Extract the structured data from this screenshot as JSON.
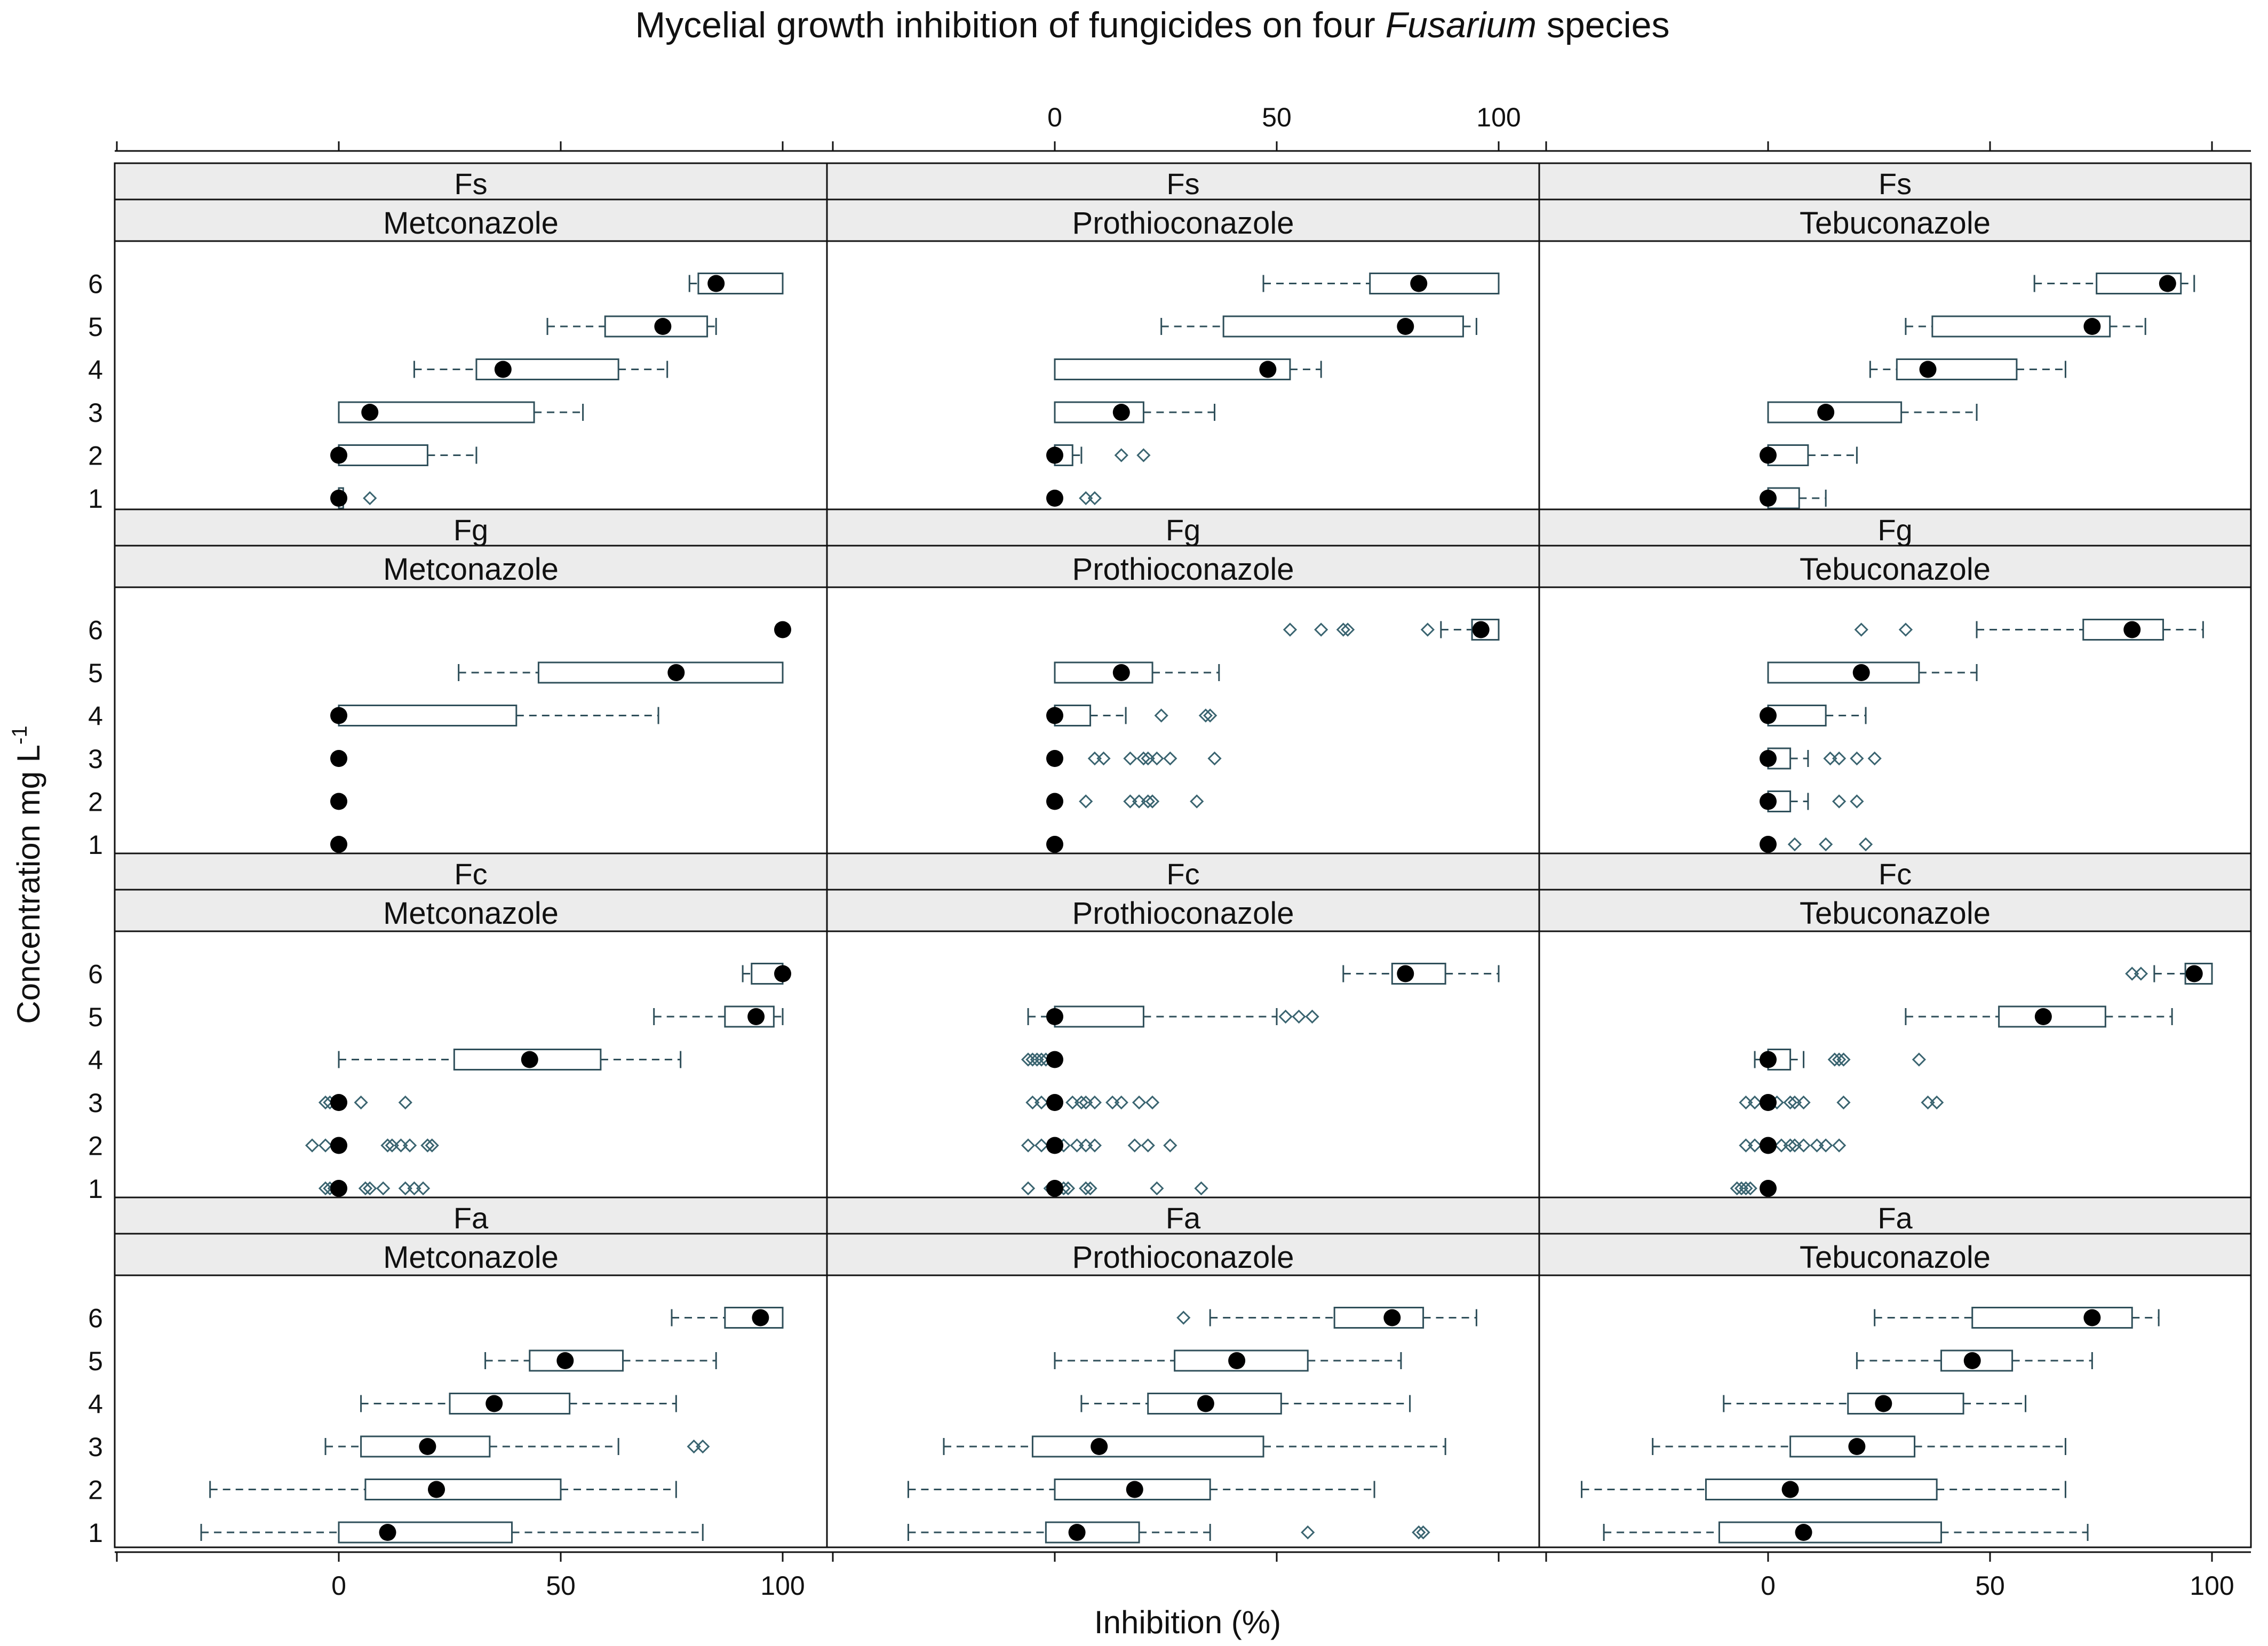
{
  "chart_data": {
    "type": "boxplot",
    "title_prefix": "Mycelial growth inhibition of fungicides on four ",
    "title_italic": "Fusarium",
    "title_suffix": " species",
    "xlabel": "Inhibition (%)",
    "ylabel": "Concentration mg L",
    "ylabel_sup": "-1",
    "xlim": [
      -50,
      110
    ],
    "x_ticks": [
      0,
      50,
      100
    ],
    "y_categories": [
      "1",
      "2",
      "3",
      "4",
      "5",
      "6"
    ],
    "panels": [
      {
        "species": "Fs",
        "fungicide": "Metconazole",
        "boxes": [
          {
            "min": 0,
            "q1": 0,
            "median": 0,
            "q3": 1,
            "max": 1,
            "outliers": [
              7
            ]
          },
          {
            "min": 0,
            "q1": 0,
            "median": 0,
            "q3": 20,
            "max": 31,
            "outliers": []
          },
          {
            "min": 0,
            "q1": 0,
            "median": 7,
            "q3": 44,
            "max": 55,
            "outliers": []
          },
          {
            "min": 17,
            "q1": 31,
            "median": 37,
            "q3": 63,
            "max": 74,
            "outliers": []
          },
          {
            "min": 47,
            "q1": 60,
            "median": 73,
            "q3": 83,
            "max": 85,
            "outliers": []
          },
          {
            "min": 79,
            "q1": 81,
            "median": 85,
            "q3": 100,
            "max": 100,
            "outliers": []
          }
        ]
      },
      {
        "species": "Fs",
        "fungicide": "Prothioconazole",
        "boxes": [
          {
            "min": 0,
            "q1": 0,
            "median": 0,
            "q3": 0,
            "max": 0,
            "outliers": [
              7,
              9
            ]
          },
          {
            "min": 0,
            "q1": 0,
            "median": 0,
            "q3": 4,
            "max": 6,
            "outliers": [
              15,
              20
            ]
          },
          {
            "min": 0,
            "q1": 0,
            "median": 15,
            "q3": 20,
            "max": 36,
            "outliers": []
          },
          {
            "min": 0,
            "q1": 0,
            "median": 48,
            "q3": 53,
            "max": 60,
            "outliers": []
          },
          {
            "min": 24,
            "q1": 38,
            "median": 79,
            "q3": 92,
            "max": 95,
            "outliers": []
          },
          {
            "min": 47,
            "q1": 71,
            "median": 82,
            "q3": 100,
            "max": 100,
            "outliers": []
          }
        ]
      },
      {
        "species": "Fs",
        "fungicide": "Tebuconazole",
        "boxes": [
          {
            "min": 0,
            "q1": 0,
            "median": 0,
            "q3": 7,
            "max": 13,
            "outliers": []
          },
          {
            "min": 0,
            "q1": 0,
            "median": 0,
            "q3": 9,
            "max": 20,
            "outliers": []
          },
          {
            "min": 0,
            "q1": 0,
            "median": 13,
            "q3": 30,
            "max": 47,
            "outliers": []
          },
          {
            "min": 23,
            "q1": 29,
            "median": 36,
            "q3": 56,
            "max": 67,
            "outliers": []
          },
          {
            "min": 31,
            "q1": 37,
            "median": 73,
            "q3": 77,
            "max": 85,
            "outliers": []
          },
          {
            "min": 60,
            "q1": 74,
            "median": 90,
            "q3": 93,
            "max": 96,
            "outliers": []
          }
        ]
      },
      {
        "species": "Fg",
        "fungicide": "Metconazole",
        "boxes": [
          {
            "min": 0,
            "q1": 0,
            "median": 0,
            "q3": 0,
            "max": 0,
            "outliers": []
          },
          {
            "min": 0,
            "q1": 0,
            "median": 0,
            "q3": 0,
            "max": 0,
            "outliers": []
          },
          {
            "min": 0,
            "q1": 0,
            "median": 0,
            "q3": 0,
            "max": 0,
            "outliers": []
          },
          {
            "min": 0,
            "q1": 0,
            "median": 0,
            "q3": 40,
            "max": 72,
            "outliers": []
          },
          {
            "min": 27,
            "q1": 45,
            "median": 76,
            "q3": 100,
            "max": 100,
            "outliers": []
          },
          {
            "min": 100,
            "q1": 100,
            "median": 100,
            "q3": 100,
            "max": 100,
            "outliers": []
          }
        ]
      },
      {
        "species": "Fg",
        "fungicide": "Prothioconazole",
        "boxes": [
          {
            "min": 0,
            "q1": 0,
            "median": 0,
            "q3": 0,
            "max": 0,
            "outliers": []
          },
          {
            "min": 0,
            "q1": 0,
            "median": 0,
            "q3": 0,
            "max": 0,
            "outliers": [
              7,
              17,
              19,
              21,
              22,
              32
            ]
          },
          {
            "min": 0,
            "q1": 0,
            "median": 0,
            "q3": 0,
            "max": 0,
            "outliers": [
              9,
              11,
              17,
              20,
              21,
              23,
              26,
              36
            ]
          },
          {
            "min": 0,
            "q1": 0,
            "median": 0,
            "q3": 8,
            "max": 16,
            "outliers": [
              24,
              34,
              35
            ]
          },
          {
            "min": 0,
            "q1": 0,
            "median": 15,
            "q3": 22,
            "max": 37,
            "outliers": []
          },
          {
            "min": 87,
            "q1": 94,
            "median": 96,
            "q3": 100,
            "max": 100,
            "outliers": [
              53,
              60,
              65,
              66,
              84
            ]
          }
        ]
      },
      {
        "species": "Fg",
        "fungicide": "Tebuconazole",
        "boxes": [
          {
            "min": 0,
            "q1": 0,
            "median": 0,
            "q3": 0,
            "max": 0,
            "outliers": [
              6,
              13,
              22
            ]
          },
          {
            "min": 0,
            "q1": 0,
            "median": 0,
            "q3": 5,
            "max": 9,
            "outliers": [
              16,
              20
            ]
          },
          {
            "min": 0,
            "q1": 0,
            "median": 0,
            "q3": 5,
            "max": 9,
            "outliers": [
              14,
              16,
              20,
              24
            ]
          },
          {
            "min": 0,
            "q1": 0,
            "median": 0,
            "q3": 13,
            "max": 22,
            "outliers": []
          },
          {
            "min": 0,
            "q1": 0,
            "median": 21,
            "q3": 34,
            "max": 47,
            "outliers": []
          },
          {
            "min": 47,
            "q1": 71,
            "median": 82,
            "q3": 89,
            "max": 98,
            "outliers": [
              21,
              31
            ]
          }
        ]
      },
      {
        "species": "Fc",
        "fungicide": "Metconazole",
        "boxes": [
          {
            "min": 0,
            "q1": 0,
            "median": 0,
            "q3": 0,
            "max": 0,
            "outliers": [
              -3,
              -2,
              -1,
              6,
              7,
              10,
              15,
              17,
              19
            ]
          },
          {
            "min": 0,
            "q1": 0,
            "median": 0,
            "q3": 0,
            "max": 0,
            "outliers": [
              -6,
              -3,
              11,
              12,
              14,
              16,
              20,
              21
            ]
          },
          {
            "min": 0,
            "q1": 0,
            "median": 0,
            "q3": 0,
            "max": 0,
            "outliers": [
              -3,
              -2,
              5,
              15
            ]
          },
          {
            "min": 0,
            "q1": 26,
            "median": 43,
            "q3": 59,
            "max": 77,
            "outliers": []
          },
          {
            "min": 71,
            "q1": 87,
            "median": 94,
            "q3": 98,
            "max": 100,
            "outliers": []
          },
          {
            "min": 91,
            "q1": 93,
            "median": 100,
            "q3": 100,
            "max": 100,
            "outliers": []
          }
        ]
      },
      {
        "species": "Fc",
        "fungicide": "Prothioconazole",
        "boxes": [
          {
            "min": 0,
            "q1": 0,
            "median": 0,
            "q3": 0,
            "max": 0,
            "outliers": [
              -6,
              -1,
              2,
              3,
              7,
              8,
              23,
              33
            ]
          },
          {
            "min": 0,
            "q1": 0,
            "median": 0,
            "q3": 0,
            "max": 0,
            "outliers": [
              -6,
              -3,
              2,
              5,
              7,
              9,
              18,
              21,
              26
            ]
          },
          {
            "min": 0,
            "q1": 0,
            "median": 0,
            "q3": 0,
            "max": 0,
            "outliers": [
              -5,
              -3,
              4,
              6,
              7,
              9,
              13,
              15,
              19,
              22
            ]
          },
          {
            "min": 0,
            "q1": 0,
            "median": 0,
            "q3": 0,
            "max": 0,
            "outliers": [
              -6,
              -5,
              -4,
              -3,
              -2
            ]
          },
          {
            "min": -6,
            "q1": 0,
            "median": 0,
            "q3": 20,
            "max": 50,
            "outliers": [
              52,
              55,
              58
            ]
          },
          {
            "min": 65,
            "q1": 76,
            "median": 79,
            "q3": 88,
            "max": 100,
            "outliers": []
          }
        ]
      },
      {
        "species": "Fc",
        "fungicide": "Tebuconazole",
        "boxes": [
          {
            "min": 0,
            "q1": 0,
            "median": 0,
            "q3": 0,
            "max": 0,
            "outliers": [
              -7,
              -6,
              -5,
              -4
            ]
          },
          {
            "min": 0,
            "q1": 0,
            "median": 0,
            "q3": 0,
            "max": 0,
            "outliers": [
              -5,
              -3,
              3,
              5,
              6,
              8,
              11,
              13,
              16
            ]
          },
          {
            "min": 0,
            "q1": 0,
            "median": 0,
            "q3": 0,
            "max": 0,
            "outliers": [
              -5,
              -3,
              2,
              5,
              6,
              8,
              17,
              36,
              38
            ]
          },
          {
            "min": -3,
            "q1": 0,
            "median": 0,
            "q3": 5,
            "max": 8,
            "outliers": [
              15,
              16,
              17,
              34
            ]
          },
          {
            "min": 31,
            "q1": 52,
            "median": 62,
            "q3": 76,
            "max": 91,
            "outliers": []
          },
          {
            "min": 87,
            "q1": 94,
            "median": 96,
            "q3": 100,
            "max": 100,
            "outliers": [
              82,
              84
            ]
          }
        ]
      },
      {
        "species": "Fa",
        "fungicide": "Metconazole",
        "boxes": [
          {
            "min": -31,
            "q1": 0,
            "median": 11,
            "q3": 39,
            "max": 82,
            "outliers": []
          },
          {
            "min": -29,
            "q1": 6,
            "median": 22,
            "q3": 50,
            "max": 76,
            "outliers": []
          },
          {
            "min": -3,
            "q1": 5,
            "median": 20,
            "q3": 34,
            "max": 63,
            "outliers": [
              80,
              82
            ]
          },
          {
            "min": 5,
            "q1": 25,
            "median": 35,
            "q3": 52,
            "max": 76,
            "outliers": []
          },
          {
            "min": 33,
            "q1": 43,
            "median": 51,
            "q3": 64,
            "max": 85,
            "outliers": []
          },
          {
            "min": 75,
            "q1": 87,
            "median": 95,
            "q3": 100,
            "max": 100,
            "outliers": []
          }
        ]
      },
      {
        "species": "Fa",
        "fungicide": "Prothioconazole",
        "boxes": [
          {
            "min": -33,
            "q1": -2,
            "median": 5,
            "q3": 19,
            "max": 35,
            "outliers": [
              57,
              82,
              83
            ]
          },
          {
            "min": -33,
            "q1": 0,
            "median": 18,
            "q3": 35,
            "max": 72,
            "outliers": []
          },
          {
            "min": -25,
            "q1": -5,
            "median": 10,
            "q3": 47,
            "max": 88,
            "outliers": []
          },
          {
            "min": 6,
            "q1": 21,
            "median": 34,
            "q3": 51,
            "max": 80,
            "outliers": []
          },
          {
            "min": 0,
            "q1": 27,
            "median": 41,
            "q3": 57,
            "max": 78,
            "outliers": []
          },
          {
            "min": 35,
            "q1": 63,
            "median": 76,
            "q3": 83,
            "max": 95,
            "outliers": [
              29
            ]
          }
        ]
      },
      {
        "species": "Fa",
        "fungicide": "Tebuconazole",
        "boxes": [
          {
            "min": -37,
            "q1": -11,
            "median": 8,
            "q3": 39,
            "max": 72,
            "outliers": []
          },
          {
            "min": -42,
            "q1": -14,
            "median": 5,
            "q3": 38,
            "max": 67,
            "outliers": []
          },
          {
            "min": -26,
            "q1": 5,
            "median": 20,
            "q3": 33,
            "max": 67,
            "outliers": []
          },
          {
            "min": -10,
            "q1": 18,
            "median": 26,
            "q3": 44,
            "max": 58,
            "outliers": []
          },
          {
            "min": 20,
            "q1": 39,
            "median": 46,
            "q3": 55,
            "max": 73,
            "outliers": []
          },
          {
            "min": 24,
            "q1": 46,
            "median": 73,
            "q3": 82,
            "max": 88,
            "outliers": []
          }
        ]
      }
    ]
  },
  "colors": {
    "strip_bg": "#ececec",
    "frame": "#111111",
    "whisker": "#2f4f5a",
    "outlier": "#3a6470",
    "median": "#000000",
    "box_fill": "#ffffff"
  }
}
